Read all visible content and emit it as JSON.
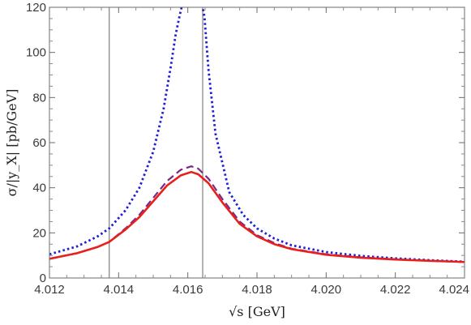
{
  "chart_data": {
    "type": "line",
    "xlabel": "√s  [GeV]",
    "ylabel": "σ/|y_X| [pb/GeV]",
    "xlim": [
      4.012,
      4.024
    ],
    "ylim": [
      0,
      120
    ],
    "x_ticks": [
      "4.012",
      "4.014",
      "4.016",
      "4.018",
      "4.020",
      "4.022",
      "4.024"
    ],
    "y_ticks": [
      "0",
      "20",
      "40",
      "60",
      "80",
      "100",
      "120"
    ],
    "grid": false,
    "vertical_lines": [
      4.01373,
      4.01643
    ],
    "series": [
      {
        "style": "dotted",
        "color": "#1f1fd6",
        "x": [
          4.012,
          4.0128,
          4.0134,
          4.01373,
          4.0142,
          4.0146,
          4.015,
          4.0153,
          4.0155,
          4.01565,
          4.01576,
          4.01585,
          4.0164,
          4.01648,
          4.0166,
          4.0168,
          4.0172,
          4.0176,
          4.018,
          4.0185,
          4.019,
          4.02,
          4.021,
          4.022,
          4.023,
          4.024
        ],
        "y": [
          10.5,
          14,
          18.5,
          22,
          30,
          40,
          56,
          75,
          93,
          108,
          116,
          122,
          122,
          116,
          92,
          64,
          38,
          28,
          22,
          17.5,
          14.5,
          11.5,
          9.8,
          8.7,
          7.9,
          7.2
        ]
      },
      {
        "style": "dashed",
        "color": "#7a2a86",
        "x": [
          4.012,
          4.0128,
          4.0134,
          4.01373,
          4.0142,
          4.0146,
          4.015,
          4.0154,
          4.0158,
          4.0161,
          4.0163,
          4.0166,
          4.017,
          4.0175,
          4.018,
          4.0185,
          4.019,
          4.02,
          4.021,
          4.022,
          4.023,
          4.024
        ],
        "y": [
          8.5,
          11,
          13.8,
          16,
          22,
          28,
          35.5,
          43,
          48,
          49.5,
          48.5,
          44,
          35,
          25,
          19,
          15.5,
          13,
          10.5,
          9.2,
          8.3,
          7.6,
          7.1
        ]
      },
      {
        "style": "solid",
        "color": "#e8201c",
        "x": [
          4.012,
          4.0128,
          4.0134,
          4.01373,
          4.0142,
          4.0146,
          4.015,
          4.0154,
          4.0158,
          4.0161,
          4.0163,
          4.0166,
          4.017,
          4.0175,
          4.018,
          4.0185,
          4.019,
          4.02,
          4.021,
          4.022,
          4.023,
          4.024
        ],
        "y": [
          8.5,
          11,
          13.8,
          16,
          21.5,
          27,
          34,
          41,
          45.5,
          47,
          46,
          42,
          33.5,
          24,
          18.5,
          15,
          12.8,
          10.3,
          9.0,
          8.2,
          7.6,
          7.1
        ]
      }
    ]
  }
}
